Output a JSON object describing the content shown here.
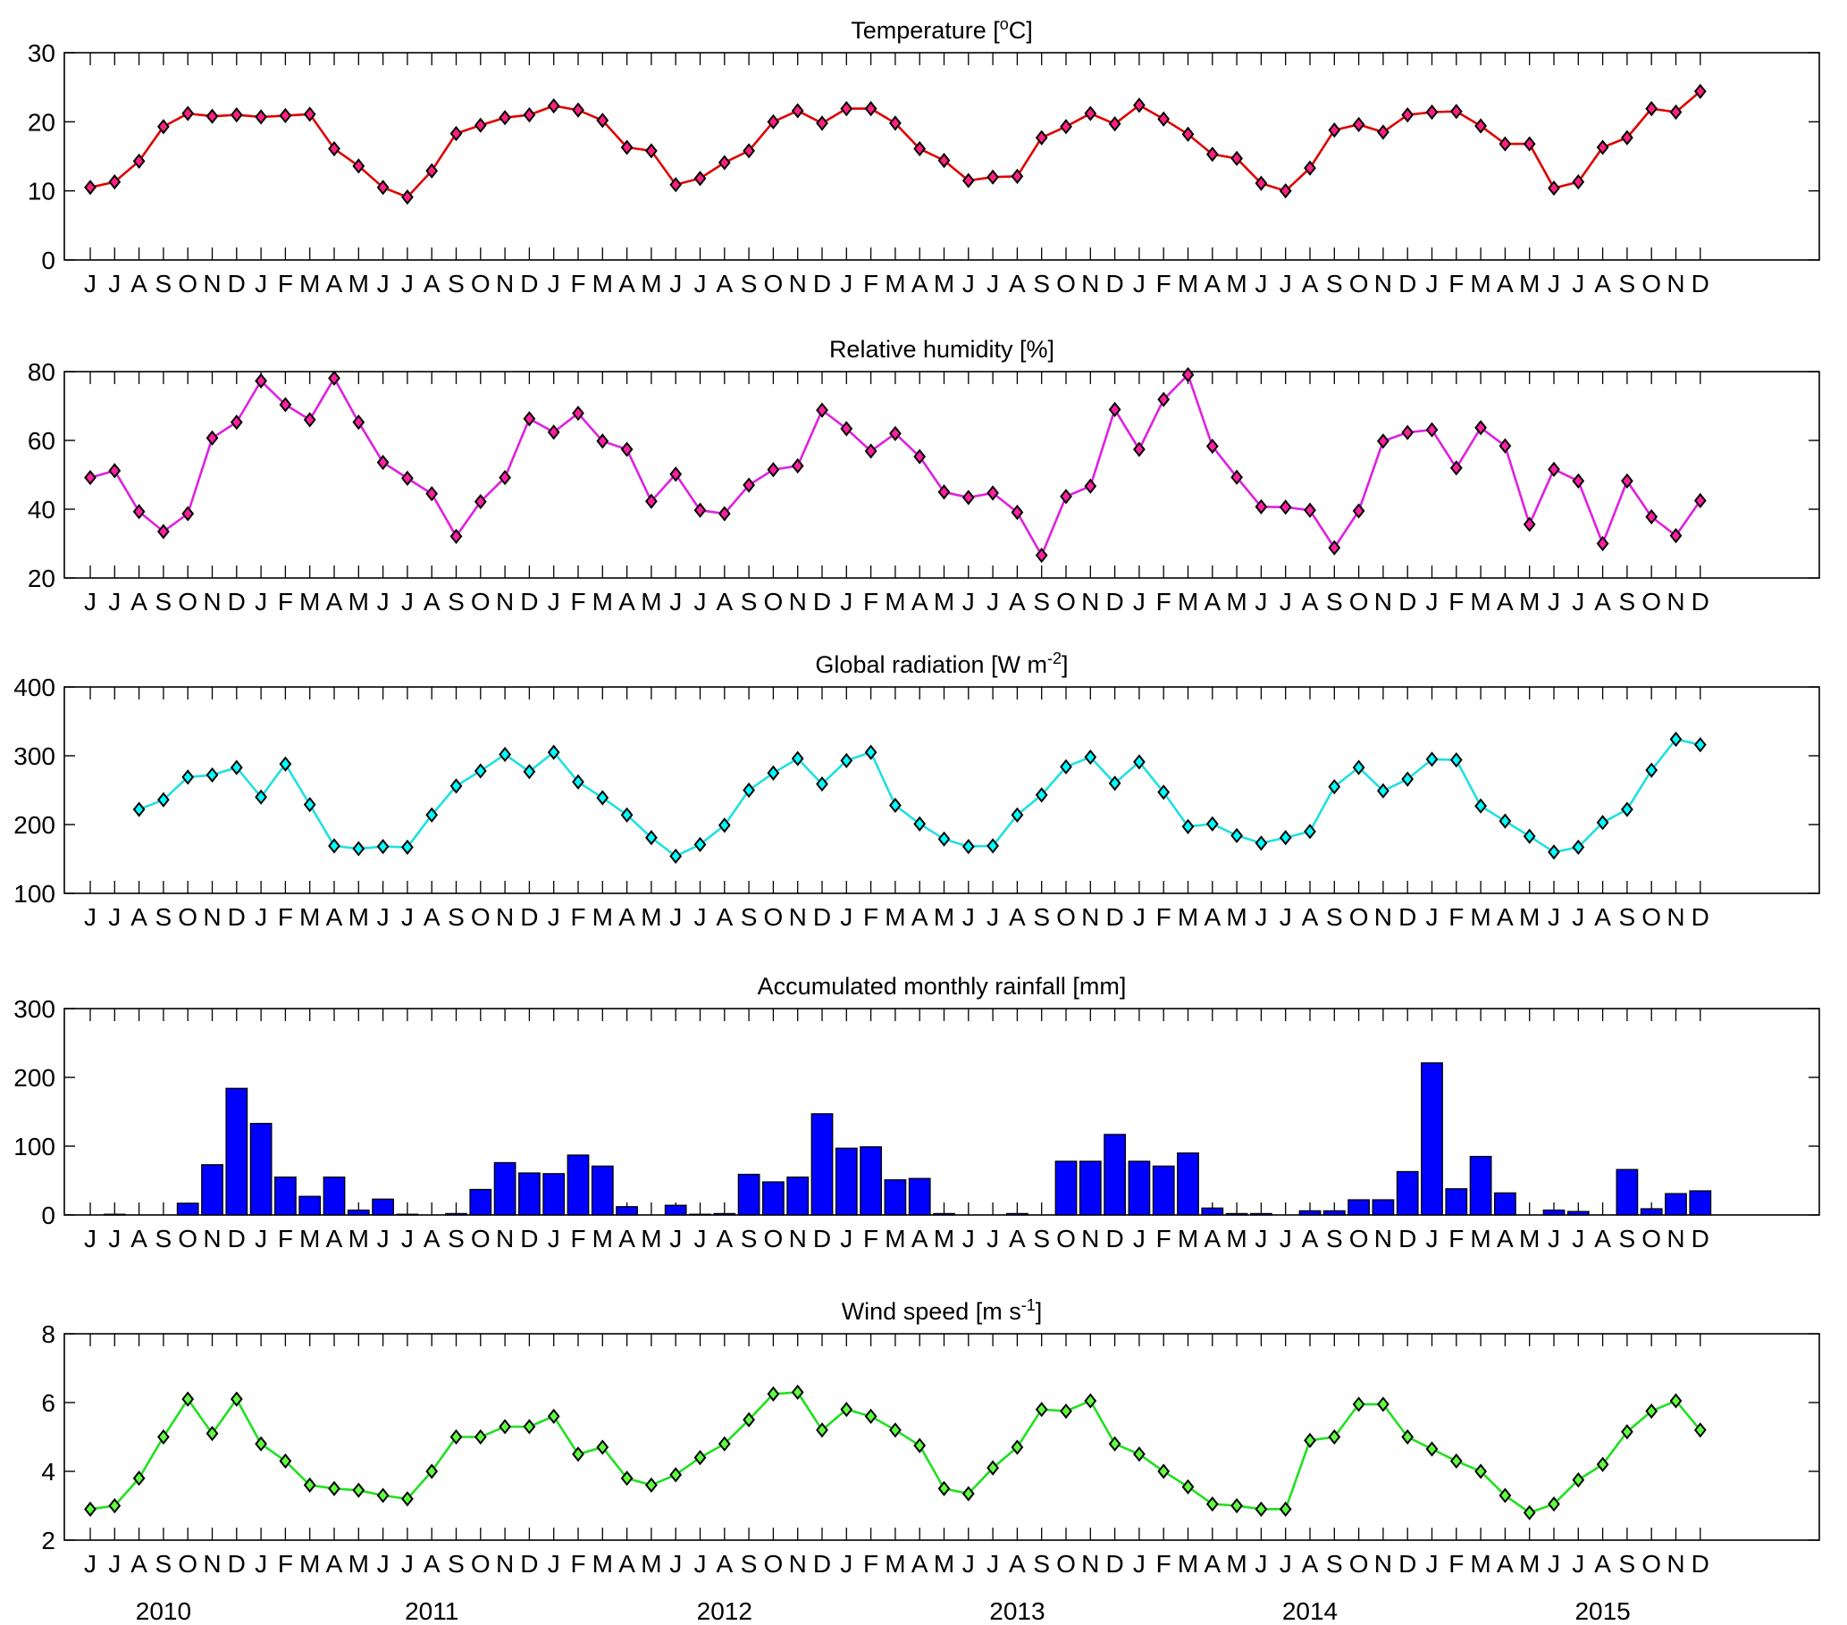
{
  "chart_data": {
    "type": "multi-panel",
    "month_labels": [
      "J",
      "J",
      "A",
      "S",
      "O",
      "N",
      "D",
      "J",
      "F",
      "M",
      "A",
      "M",
      "J",
      "J",
      "A",
      "S",
      "O",
      "N",
      "D",
      "J",
      "F",
      "M",
      "A",
      "M",
      "J",
      "J",
      "A",
      "S",
      "O",
      "N",
      "D",
      "J",
      "F",
      "M",
      "A",
      "M",
      "J",
      "J",
      "A",
      "S",
      "O",
      "N",
      "D",
      "J",
      "F",
      "M",
      "A",
      "M",
      "J",
      "J",
      "A",
      "S",
      "O",
      "N",
      "D",
      "J",
      "F",
      "M",
      "A",
      "M",
      "J",
      "J",
      "A",
      "S",
      "O",
      "N",
      "D"
    ],
    "years": [
      {
        "label": "2010",
        "center_month": 3
      },
      {
        "label": "2011",
        "center_month": 14
      },
      {
        "label": "2012",
        "center_month": 26
      },
      {
        "label": "2013",
        "center_month": 38
      },
      {
        "label": "2014",
        "center_month": 50
      },
      {
        "label": "2015",
        "center_month": 62
      }
    ],
    "panels": [
      {
        "key": "temperature",
        "type": "line",
        "title": "Temperature [",
        "title_sup": "o",
        "title_after": "C]",
        "ylim": [
          0,
          30
        ],
        "yticks": [
          0,
          10,
          20,
          30
        ],
        "color": "#e00000",
        "marker_color": "#ff2080",
        "values": [
          10.5,
          11.3,
          14.3,
          19.3,
          21.2,
          20.8,
          21,
          20.7,
          20.9,
          21.1,
          16.1,
          13.6,
          10.5,
          9.1,
          12.9,
          18.3,
          19.5,
          20.6,
          21,
          22.3,
          21.7,
          20.2,
          16.3,
          15.8,
          10.9,
          11.8,
          14.1,
          15.8,
          20,
          21.6,
          19.8,
          21.9,
          21.9,
          19.8,
          16.1,
          14.4,
          11.5,
          12,
          12.1,
          17.7,
          19.3,
          21.2,
          19.7,
          22.4,
          20.4,
          18.2,
          15.3,
          14.7,
          11.1,
          10,
          13.3,
          18.8,
          19.6,
          18.5,
          21,
          21.4,
          21.5,
          19.4,
          16.8,
          16.8,
          10.4,
          11.3,
          16.3,
          17.7,
          21.9,
          21.4,
          24.4
        ]
      },
      {
        "key": "humidity",
        "type": "line",
        "title": "Relative humidity [%]",
        "ylim": [
          20,
          80
        ],
        "yticks": [
          20,
          40,
          60,
          80
        ],
        "color": "#e020e0",
        "marker_color": "#ff20a0",
        "values": [
          49.2,
          51.2,
          39.3,
          33.5,
          38.7,
          60.7,
          65.3,
          77.3,
          70.4,
          66,
          78.1,
          65.3,
          53.6,
          49,
          44.5,
          32.1,
          42.2,
          49.2,
          66.3,
          62.4,
          67.9,
          59.8,
          57.4,
          42.3,
          50.2,
          39.7,
          38.7,
          47,
          51.5,
          52.6,
          68.8,
          63.4,
          56.9,
          62,
          55.3,
          45,
          43.4,
          44.7,
          39.1,
          26.6,
          43.7,
          46.7,
          69,
          57.4,
          71.9,
          79.1,
          58.3,
          49.3,
          40.7,
          40.6,
          39.7,
          28.8,
          39.5,
          59.8,
          62.3,
          63.1,
          52,
          63.7,
          58.4,
          35.6,
          51.6,
          48.2,
          30,
          48.2,
          37.8,
          32.3,
          42.5
        ]
      },
      {
        "key": "radiation",
        "type": "line",
        "title": "Global radiation [W m",
        "title_sup": "-2",
        "title_after": "]",
        "ylim": [
          100,
          400
        ],
        "yticks": [
          100,
          200,
          300,
          400
        ],
        "color": "#20e0e0",
        "marker_color": "#00ffff",
        "values": [
          null,
          null,
          222,
          236,
          269,
          272,
          283,
          240,
          288,
          229,
          169,
          165,
          168,
          167,
          214,
          256,
          278,
          302,
          277,
          305,
          262,
          239,
          214,
          181,
          154,
          171,
          199,
          250,
          275,
          296,
          259,
          293,
          305,
          228,
          201,
          179,
          168,
          169,
          214,
          243,
          284,
          298,
          260,
          291,
          247,
          197,
          201,
          184,
          173,
          181,
          190,
          255,
          283,
          249,
          266,
          295,
          294,
          227,
          205,
          183,
          160,
          167,
          203,
          222,
          279,
          324,
          316
        ]
      },
      {
        "key": "rainfall",
        "type": "bar",
        "title": "Accumulated monthly rainfall [mm]",
        "ylim": [
          0,
          300
        ],
        "yticks": [
          0,
          100,
          200,
          300
        ],
        "color": "#0000ff",
        "values": [
          0,
          1,
          0,
          0,
          17,
          73,
          184,
          133,
          55,
          27,
          55,
          7,
          23,
          1,
          0,
          2,
          37,
          76,
          61,
          60,
          87,
          71,
          12,
          0,
          14,
          1,
          2,
          59,
          48,
          55,
          147,
          97,
          99,
          51,
          53,
          2,
          0,
          0,
          2,
          0,
          78,
          78,
          117,
          78,
          71,
          90,
          10,
          2,
          2,
          0,
          6,
          6,
          22,
          22,
          63,
          221,
          38,
          85,
          32,
          0,
          7,
          5,
          0,
          66,
          9,
          31,
          35
        ]
      },
      {
        "key": "wind",
        "type": "line",
        "title": "Wind speed [m s",
        "title_sup": "-1",
        "title_after": "]",
        "ylim": [
          2,
          8
        ],
        "yticks": [
          2,
          4,
          6,
          8
        ],
        "color": "#20e020",
        "marker_color": "#60ff40",
        "values": [
          2.9,
          3,
          3.8,
          5,
          6.1,
          5.1,
          6.1,
          4.8,
          4.3,
          3.6,
          3.5,
          3.45,
          3.3,
          3.2,
          4,
          5,
          5,
          5.3,
          5.3,
          5.6,
          4.5,
          4.7,
          3.8,
          3.6,
          3.9,
          4.4,
          4.8,
          5.5,
          6.25,
          6.3,
          5.2,
          5.8,
          5.6,
          5.2,
          4.75,
          3.5,
          3.35,
          4.1,
          4.7,
          5.8,
          5.75,
          6.05,
          4.8,
          4.5,
          4,
          3.55,
          3.05,
          3,
          2.9,
          2.9,
          4.9,
          5,
          5.95,
          5.95,
          5,
          4.65,
          4.3,
          4,
          3.3,
          2.8,
          3.05,
          3.75,
          4.2,
          5.15,
          5.75,
          6.05,
          5.2
        ]
      }
    ]
  }
}
